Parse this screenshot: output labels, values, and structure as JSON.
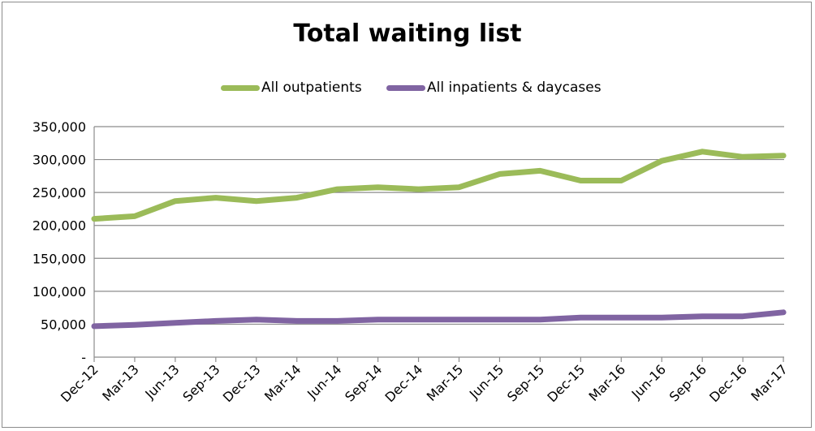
{
  "chart_data": {
    "type": "line",
    "title": "Total waiting list",
    "xlabel": "",
    "ylabel": "",
    "ylim": [
      0,
      350000
    ],
    "yticks": [
      0,
      50000,
      100000,
      150000,
      200000,
      250000,
      300000,
      350000
    ],
    "ytick_labels": [
      "-",
      "50,000",
      "100,000",
      "150,000",
      "200,000",
      "250,000",
      "300,000",
      "350,000"
    ],
    "categories": [
      "Dec-12",
      "Mar-13",
      "Jun-13",
      "Sep-13",
      "Dec-13",
      "Mar-14",
      "Jun-14",
      "Sep-14",
      "Dec-14",
      "Mar-15",
      "Jun-15",
      "Sep-15",
      "Dec-15",
      "Mar-16",
      "Jun-16",
      "Sep-16",
      "Dec-16",
      "Mar-17"
    ],
    "grid": true,
    "legend_position": "top",
    "series": [
      {
        "name": "All outpatients",
        "color": "#9bbb59",
        "values": [
          210000,
          214000,
          237000,
          242000,
          237000,
          242000,
          255000,
          258000,
          255000,
          258000,
          278000,
          283000,
          268000,
          268000,
          298000,
          312000,
          304000,
          306000
        ]
      },
      {
        "name": "All inpatients & daycases",
        "color": "#8064a2",
        "values": [
          47000,
          49000,
          52000,
          55000,
          57000,
          55000,
          55000,
          57000,
          57000,
          57000,
          57000,
          57000,
          60000,
          60000,
          60000,
          62000,
          62000,
          68000
        ]
      }
    ]
  }
}
